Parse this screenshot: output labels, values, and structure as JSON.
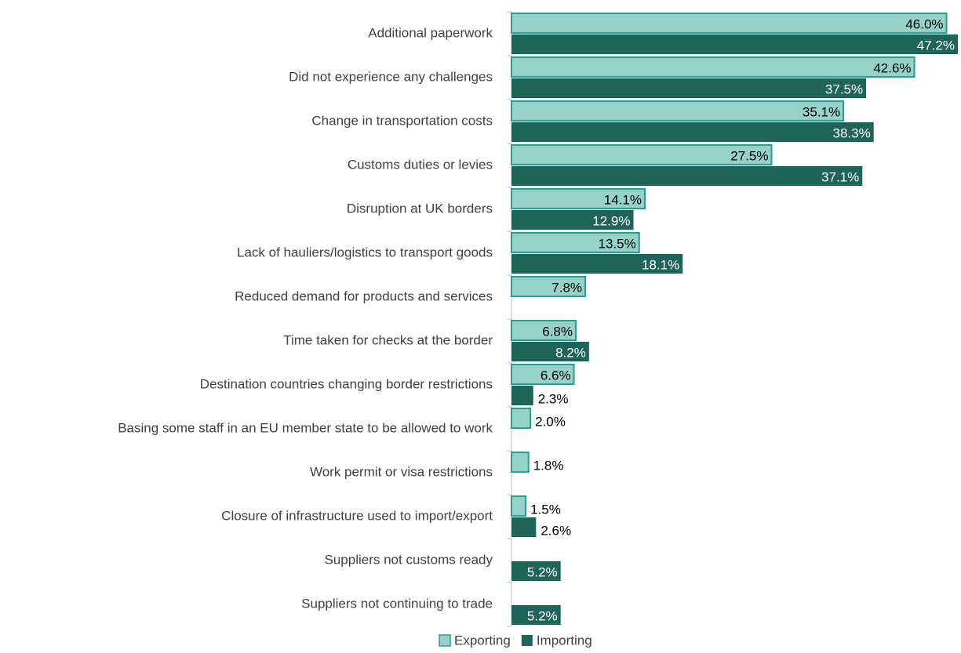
{
  "chart_data": {
    "type": "bar",
    "orientation": "horizontal",
    "categories": [
      "Additional paperwork",
      "Did not experience any challenges",
      "Change in transportation costs",
      "Customs duties or levies",
      "Disruption at UK borders",
      "Lack of hauliers/logistics to transport goods",
      "Reduced demand for products and services",
      "Time taken for checks at the border",
      "Destination countries changing border restrictions",
      "Basing some staff in an EU member state to be allowed to work",
      "Work permit or visa restrictions",
      "Closure of infrastructure used to import/export",
      "Suppliers not customs ready",
      "Suppliers not continuing to trade"
    ],
    "series": [
      {
        "name": "Exporting",
        "color": "#96d2c8",
        "edge": "#2a9d8f",
        "values": [
          46.0,
          42.6,
          35.1,
          27.5,
          14.1,
          13.5,
          7.8,
          6.8,
          6.6,
          2.0,
          1.8,
          1.5,
          null,
          null
        ],
        "value_labels": [
          "46.0%",
          "42.6%",
          "35.1%",
          "27.5%",
          "14.1%",
          "13.5%",
          "7.8%",
          "6.8%",
          "6.6%",
          "2.0%",
          "1.8%",
          "1.5%",
          null,
          null
        ]
      },
      {
        "name": "Importing",
        "color": "#1e6459",
        "values": [
          47.2,
          37.5,
          38.3,
          37.1,
          12.9,
          18.1,
          null,
          8.2,
          2.3,
          null,
          null,
          2.6,
          5.2,
          5.2
        ],
        "value_labels": [
          "47.2%",
          "37.5%",
          "38.3%",
          "37.1%",
          "12.9%",
          "18.1%",
          null,
          "8.2%",
          "2.3%",
          null,
          null,
          "2.6%",
          "5.2%",
          "5.2%"
        ]
      }
    ],
    "xlim": [
      0,
      47.2
    ],
    "legend": "bottom"
  }
}
